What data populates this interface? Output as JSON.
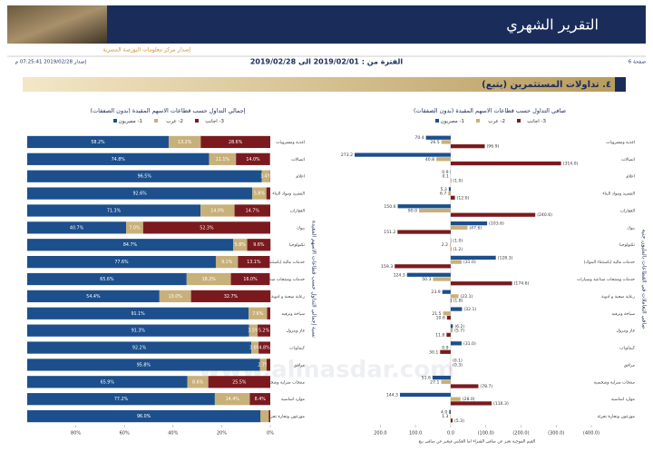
{
  "header": {
    "title": "التقرير الشهري",
    "subtitle": "إصدار مركز معلومات البورصة المصرية",
    "page": "صفحة 6",
    "period": "الفترة من : 2019/02/01 الى 2019/02/28",
    "issued": "إصدار 2019/02/28 07:25:41 م"
  },
  "section": "٤. تداولات المستثمرين (يتبع)",
  "watermark": "www.almasdar.com",
  "chart_data": [
    {
      "type": "bar",
      "stacked": true,
      "orientation": "horizontal",
      "title": "إجمالي التداول حسب قطاعات الاسهم المقيدة (بدون الصفقات)",
      "ylabel": "نسبة إجمالي التداول حسب قطاعات الاسهم المقيدة",
      "categories": [
        "اغذية ومشروبات",
        "اتصالات",
        "اعلام",
        "التشييد ومواد البناء",
        "العقارات",
        "بنوك",
        "تكنولوجيا",
        "خدمات مالية (باستثناء البنوك)",
        "خدمات ومنتجات صناعية وسيارات",
        "رعاية صحية و ادوية",
        "سياحة وترفيه",
        "غاز وبترول",
        "كيماويات",
        "مرافق",
        "منتجات منزلية وشخصية",
        "موارد اساسية",
        "موزعون وتجارة تجزئة"
      ],
      "series": [
        {
          "name": "1- مصريون",
          "color": "#1c4f8c",
          "values": [
            58.2,
            74.8,
            96.5,
            92.6,
            71.3,
            40.7,
            84.7,
            77.6,
            65.6,
            54.4,
            91.1,
            91.3,
            92.2,
            95.8,
            65.9,
            77.2,
            96.0
          ],
          "value_labels": [
            "58.2%",
            "74.8%",
            "96.5%",
            "92.6%",
            "71.3%",
            "40.7%",
            "84.7%",
            "77.6%",
            "65.6%",
            "54.4%",
            "91.1%",
            "91.3%",
            "92.2%",
            "95.8%",
            "65.9%",
            "77.2%",
            "96.0%"
          ]
        },
        {
          "name": "2- عرب",
          "color": "#c8b07a",
          "values": [
            13.2,
            11.1,
            3.4,
            5.8,
            14.0,
            7.0,
            5.8,
            9.1,
            18.2,
            13.0,
            7.6,
            3.5,
            3.0,
            2.7,
            8.6,
            14.4,
            3.4
          ],
          "value_labels": [
            "13.2%",
            "11.1%",
            "3.4%",
            "5.8%",
            "14.0%",
            "7.0%",
            "5.8%",
            "9.1%",
            "18.2%",
            "13.0%",
            "7.6%",
            "3.5%",
            "3.0%",
            "2.7%",
            "8.6%",
            "14.4%",
            null
          ]
        },
        {
          "name": "3- اجانب",
          "color": "#7a1a1f",
          "values": [
            28.6,
            14.0,
            0.1,
            1.6,
            14.7,
            52.3,
            9.6,
            13.1,
            16.0,
            32.7,
            1.3,
            5.2,
            4.8,
            1.5,
            25.5,
            8.4,
            0.6
          ],
          "value_labels": [
            "28.6%",
            "14.0%",
            null,
            null,
            "14.7%",
            "52.3%",
            "9.6%",
            "13.1%",
            "16.0%",
            "32.7%",
            null,
            "5.2%",
            "4.8%",
            null,
            "25.5%",
            "8.4%",
            null
          ]
        }
      ],
      "xlim": [
        100,
        0
      ],
      "xticks": [
        {
          "value": 80,
          "label": "80%"
        },
        {
          "value": 60,
          "label": "60%"
        },
        {
          "value": 40,
          "label": "40%"
        },
        {
          "value": 20,
          "label": "20%"
        },
        {
          "value": 0,
          "label": "0%"
        }
      ]
    },
    {
      "type": "bar",
      "stacked": false,
      "orientation": "horizontal",
      "title": "صافي التداول حسب قطاعات الاسهم المقيدة (بدون الصفقات)",
      "ylabel": "صافي التعاملات في القطاعات بالمليون جنيه",
      "note": "القيم الموجبة تعبر عن صافي الشراء اما العكس فيعبر عن صافي بيع",
      "categories": [
        "اغذية ومشروبات",
        "اتصالات",
        "اعلام",
        "التشييد ومواد البناء",
        "العقارات",
        "بنوك",
        "تكنولوجيا",
        "خدمات مالية (باستثناء البنوك)",
        "خدمات ومنتجات صناعية وسيارات",
        "رعاية صحية و ادوية",
        "سياحة وترفيه",
        "غاز وبترول",
        "كيماويات",
        "مرافق",
        "منتجات منزلية وشخصية",
        "موارد اساسية",
        "موزعون وتجارة تجزئة"
      ],
      "series": [
        {
          "name": "1- مصريون",
          "color": "#1c4f8c",
          "values": [
            70.4,
            273.2,
            0.9,
            5.3,
            150.6,
            -103.6,
            -1.0,
            -128.3,
            124.3,
            23.9,
            -32.1,
            -6.2,
            -31.0,
            -0.1,
            51.6,
            144.3,
            4.0
          ],
          "value_labels": [
            "70.4",
            "273.2",
            "0.9",
            "5.3",
            "150.6",
            "(103.6)",
            "(1.0)",
            "(128.3)",
            "124.3",
            "23.9",
            "(32.1)",
            "(6.2)",
            "(31.0)",
            "(0.1)",
            "51.6",
            "144.3",
            "4.0"
          ]
        },
        {
          "name": "2- عرب",
          "color": "#c8b07a",
          "values": [
            26.5,
            40.8,
            0.1,
            6.7,
            90.0,
            -47.6,
            2.2,
            -31.0,
            50.3,
            -22.1,
            21.5,
            -5.7,
            0.9,
            -0.3,
            27.1,
            -28.0,
            1.3
          ],
          "value_labels": [
            "26.5",
            "40.8",
            "0.1",
            "6.7",
            "90.0",
            "(47.6)",
            "2.2",
            "(31.0)",
            "50.3",
            "(22.1)",
            "21.5",
            "(5.7)",
            "0.9",
            "(0.3)",
            "27.1",
            "(28.0)",
            "1.3"
          ]
        },
        {
          "name": "3- اجانب",
          "color": "#7a1a1f",
          "values": [
            -96.9,
            -314.0,
            -1.0,
            -12.0,
            -240.6,
            151.2,
            -1.2,
            159.3,
            -174.6,
            -1.8,
            10.6,
            11.8,
            30.1,
            0.4,
            -78.7,
            -116.3,
            -5.3
          ],
          "value_labels": [
            "(96.9)",
            "(314.0)",
            "(1.0)",
            "(12.0)",
            "(240.6)",
            "151.2",
            "(1.2)",
            "159.3",
            "(174.6)",
            "(1.8)",
            "10.6",
            "11.8",
            "30.1",
            null,
            "(78.7)",
            "(116.3)",
            "(5.3)"
          ]
        }
      ],
      "xlim": [
        250,
        -400
      ],
      "xticks": [
        {
          "value": 200,
          "label": "200.0"
        },
        {
          "value": 100,
          "label": "100.0"
        },
        {
          "value": 0,
          "label": "0.0"
        },
        {
          "value": -100,
          "label": "(100.0)"
        },
        {
          "value": -200,
          "label": "(200.0)"
        },
        {
          "value": -300,
          "label": "(300.0)"
        },
        {
          "value": -400,
          "label": "(400.0)"
        }
      ]
    }
  ]
}
